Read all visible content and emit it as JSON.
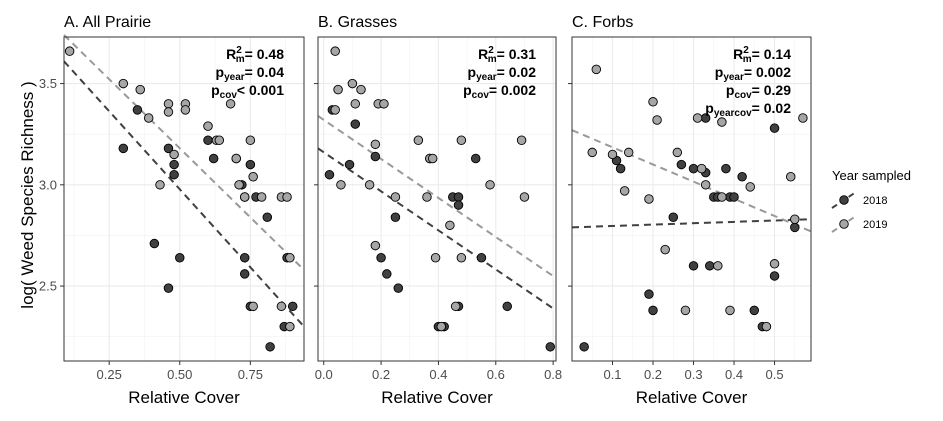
{
  "y_axis_label": "log( Weed Species Richness )",
  "legend": {
    "title": "Year sampled",
    "entries": [
      {
        "label": "2018",
        "point_color": "#404040",
        "line_color": "#404040"
      },
      {
        "label": "2019",
        "point_color": "#a6a6a6",
        "line_color": "#999999"
      }
    ]
  },
  "chart_data": [
    {
      "type": "scatter",
      "title": "A. All Prairie",
      "xlabel": "Relative Cover",
      "ylabel": "log( Weed Species Richness )",
      "xlim": [
        0.09,
        0.94
      ],
      "ylim": [
        2.13,
        3.73
      ],
      "x_ticks": [
        0.25,
        0.5,
        0.75
      ],
      "x_tick_labels": [
        "0.25",
        "0.50",
        "0.75"
      ],
      "y_ticks": [
        2.5,
        3.0,
        3.5
      ],
      "y_tick_labels": [
        "2.5",
        "3.0",
        "3.5"
      ],
      "grid": true,
      "stats": [
        {
          "base": "R",
          "sup": "2",
          "sub": "m",
          "value": "= 0.48"
        },
        {
          "base": "p",
          "sup": "",
          "sub": "year",
          "value": "= 0.04"
        },
        {
          "base": "p",
          "sup": "",
          "sub": "cov",
          "value": "< 0.001"
        }
      ],
      "trend_lines": [
        {
          "series": "2018",
          "x": [
            0.09,
            0.94
          ],
          "y": [
            3.61,
            2.3
          ]
        },
        {
          "series": "2019",
          "x": [
            0.09,
            0.94
          ],
          "y": [
            3.74,
            2.58
          ]
        }
      ],
      "series": [
        {
          "name": "2018",
          "points": [
            {
              "x": 0.3,
              "y": 3.18
            },
            {
              "x": 0.35,
              "y": 3.37
            },
            {
              "x": 0.46,
              "y": 3.18
            },
            {
              "x": 0.48,
              "y": 3.05
            },
            {
              "x": 0.48,
              "y": 3.1
            },
            {
              "x": 0.5,
              "y": 2.64
            },
            {
              "x": 0.46,
              "y": 2.49
            },
            {
              "x": 0.41,
              "y": 2.71
            },
            {
              "x": 0.6,
              "y": 3.22
            },
            {
              "x": 0.62,
              "y": 3.13
            },
            {
              "x": 0.7,
              "y": 3.13
            },
            {
              "x": 0.72,
              "y": 3.0
            },
            {
              "x": 0.73,
              "y": 2.94
            },
            {
              "x": 0.73,
              "y": 2.64
            },
            {
              "x": 0.73,
              "y": 2.56
            },
            {
              "x": 0.75,
              "y": 3.1
            },
            {
              "x": 0.75,
              "y": 2.4
            },
            {
              "x": 0.77,
              "y": 2.94
            },
            {
              "x": 0.81,
              "y": 2.84
            },
            {
              "x": 0.82,
              "y": 2.2
            },
            {
              "x": 0.87,
              "y": 2.3
            },
            {
              "x": 0.88,
              "y": 2.64
            },
            {
              "x": 0.9,
              "y": 2.4
            }
          ]
        },
        {
          "name": "2019",
          "points": [
            {
              "x": 0.11,
              "y": 3.66
            },
            {
              "x": 0.3,
              "y": 3.5
            },
            {
              "x": 0.36,
              "y": 3.47
            },
            {
              "x": 0.39,
              "y": 3.33
            },
            {
              "x": 0.43,
              "y": 3.0
            },
            {
              "x": 0.46,
              "y": 3.4
            },
            {
              "x": 0.46,
              "y": 3.36
            },
            {
              "x": 0.48,
              "y": 3.15
            },
            {
              "x": 0.52,
              "y": 3.4
            },
            {
              "x": 0.52,
              "y": 3.37
            },
            {
              "x": 0.6,
              "y": 3.29
            },
            {
              "x": 0.63,
              "y": 3.22
            },
            {
              "x": 0.68,
              "y": 3.4
            },
            {
              "x": 0.7,
              "y": 3.13
            },
            {
              "x": 0.71,
              "y": 3.0
            },
            {
              "x": 0.75,
              "y": 3.22
            },
            {
              "x": 0.76,
              "y": 3.04
            },
            {
              "x": 0.76,
              "y": 2.4
            },
            {
              "x": 0.79,
              "y": 2.94
            },
            {
              "x": 0.86,
              "y": 2.4
            },
            {
              "x": 0.86,
              "y": 2.94
            },
            {
              "x": 0.88,
              "y": 2.94
            },
            {
              "x": 0.89,
              "y": 2.64
            },
            {
              "x": 0.89,
              "y": 2.3
            },
            {
              "x": 0.73,
              "y": 2.94
            },
            {
              "x": 0.64,
              "y": 3.22
            }
          ]
        }
      ]
    },
    {
      "type": "scatter",
      "title": "B. Grasses",
      "xlabel": "Relative Cover",
      "xlim": [
        -0.02,
        0.81
      ],
      "ylim": [
        2.13,
        3.73
      ],
      "x_ticks": [
        0.0,
        0.2,
        0.4,
        0.6,
        0.8
      ],
      "x_tick_labels": [
        "0.0",
        "0.2",
        "0.4",
        "0.6",
        "0.8"
      ],
      "y_ticks": [
        2.5,
        3.0,
        3.5
      ],
      "y_tick_labels": [
        "",
        "",
        ""
      ],
      "grid": true,
      "stats": [
        {
          "base": "R",
          "sup": "2",
          "sub": "m",
          "value": "= 0.31"
        },
        {
          "base": "p",
          "sup": "",
          "sub": "year",
          "value": "= 0.02"
        },
        {
          "base": "p",
          "sup": "",
          "sub": "cov",
          "value": "= 0.002"
        }
      ],
      "trend_lines": [
        {
          "series": "2018",
          "x": [
            -0.02,
            0.81
          ],
          "y": [
            3.18,
            2.38
          ]
        },
        {
          "series": "2019",
          "x": [
            -0.02,
            0.81
          ],
          "y": [
            3.34,
            2.54
          ]
        }
      ],
      "series": [
        {
          "name": "2018",
          "points": [
            {
              "x": 0.02,
              "y": 3.05
            },
            {
              "x": 0.03,
              "y": 3.37
            },
            {
              "x": 0.09,
              "y": 3.1
            },
            {
              "x": 0.11,
              "y": 3.3
            },
            {
              "x": 0.18,
              "y": 3.14
            },
            {
              "x": 0.2,
              "y": 2.64
            },
            {
              "x": 0.22,
              "y": 2.56
            },
            {
              "x": 0.25,
              "y": 2.84
            },
            {
              "x": 0.26,
              "y": 2.49
            },
            {
              "x": 0.37,
              "y": 3.13
            },
            {
              "x": 0.4,
              "y": 2.3
            },
            {
              "x": 0.42,
              "y": 2.3
            },
            {
              "x": 0.45,
              "y": 2.94
            },
            {
              "x": 0.47,
              "y": 2.94
            },
            {
              "x": 0.47,
              "y": 2.9
            },
            {
              "x": 0.47,
              "y": 2.4
            },
            {
              "x": 0.53,
              "y": 3.13
            },
            {
              "x": 0.55,
              "y": 2.64
            },
            {
              "x": 0.64,
              "y": 2.4
            },
            {
              "x": 0.79,
              "y": 2.2
            }
          ]
        },
        {
          "name": "2019",
          "points": [
            {
              "x": 0.04,
              "y": 3.66
            },
            {
              "x": 0.05,
              "y": 3.47
            },
            {
              "x": 0.04,
              "y": 3.37
            },
            {
              "x": 0.06,
              "y": 3.0
            },
            {
              "x": 0.1,
              "y": 3.5
            },
            {
              "x": 0.11,
              "y": 3.4
            },
            {
              "x": 0.13,
              "y": 3.47
            },
            {
              "x": 0.18,
              "y": 3.2
            },
            {
              "x": 0.19,
              "y": 3.4
            },
            {
              "x": 0.21,
              "y": 3.4
            },
            {
              "x": 0.16,
              "y": 3.0
            },
            {
              "x": 0.18,
              "y": 2.7
            },
            {
              "x": 0.25,
              "y": 2.94
            },
            {
              "x": 0.33,
              "y": 3.22
            },
            {
              "x": 0.37,
              "y": 3.13
            },
            {
              "x": 0.38,
              "y": 3.13
            },
            {
              "x": 0.36,
              "y": 2.94
            },
            {
              "x": 0.39,
              "y": 2.64
            },
            {
              "x": 0.41,
              "y": 2.3
            },
            {
              "x": 0.44,
              "y": 2.8
            },
            {
              "x": 0.46,
              "y": 2.4
            },
            {
              "x": 0.48,
              "y": 3.22
            },
            {
              "x": 0.48,
              "y": 2.64
            },
            {
              "x": 0.58,
              "y": 3.0
            },
            {
              "x": 0.69,
              "y": 3.22
            },
            {
              "x": 0.7,
              "y": 2.94
            }
          ]
        }
      ]
    },
    {
      "type": "scatter",
      "title": "C. Forbs",
      "xlabel": "Relative Cover",
      "xlim": [
        0.0,
        0.59
      ],
      "ylim": [
        2.13,
        3.73
      ],
      "x_ticks": [
        0.1,
        0.2,
        0.3,
        0.4,
        0.5
      ],
      "x_tick_labels": [
        "0.1",
        "0.2",
        "0.3",
        "0.4",
        "0.5"
      ],
      "y_ticks": [
        2.5,
        3.0,
        3.5
      ],
      "y_tick_labels": [
        "",
        "",
        ""
      ],
      "grid": true,
      "stats": [
        {
          "base": "R",
          "sup": "2",
          "sub": "m",
          "value": "= 0.14"
        },
        {
          "base": "p",
          "sup": "",
          "sub": "year",
          "value": "= 0.002"
        },
        {
          "base": "p",
          "sup": "",
          "sub": "cov",
          "value": "= 0.29"
        },
        {
          "base": "p",
          "sup": "",
          "sub": "yearcov",
          "value": "= 0.02"
        }
      ],
      "trend_lines": [
        {
          "series": "2018",
          "x": [
            0.0,
            0.59
          ],
          "y": [
            2.79,
            2.83
          ]
        },
        {
          "series": "2019",
          "x": [
            0.0,
            0.59
          ],
          "y": [
            3.27,
            2.77
          ]
        }
      ],
      "series": [
        {
          "name": "2018",
          "points": [
            {
              "x": 0.03,
              "y": 2.2
            },
            {
              "x": 0.11,
              "y": 3.12
            },
            {
              "x": 0.12,
              "y": 3.08
            },
            {
              "x": 0.19,
              "y": 2.46
            },
            {
              "x": 0.2,
              "y": 2.38
            },
            {
              "x": 0.25,
              "y": 2.84
            },
            {
              "x": 0.27,
              "y": 3.1
            },
            {
              "x": 0.3,
              "y": 3.08
            },
            {
              "x": 0.3,
              "y": 2.6
            },
            {
              "x": 0.33,
              "y": 3.33
            },
            {
              "x": 0.33,
              "y": 3.06
            },
            {
              "x": 0.34,
              "y": 2.6
            },
            {
              "x": 0.35,
              "y": 2.94
            },
            {
              "x": 0.36,
              "y": 2.94
            },
            {
              "x": 0.38,
              "y": 3.08
            },
            {
              "x": 0.39,
              "y": 2.94
            },
            {
              "x": 0.4,
              "y": 2.94
            },
            {
              "x": 0.42,
              "y": 3.04
            },
            {
              "x": 0.45,
              "y": 2.38
            },
            {
              "x": 0.47,
              "y": 2.3
            },
            {
              "x": 0.5,
              "y": 3.28
            },
            {
              "x": 0.5,
              "y": 2.55
            },
            {
              "x": 0.55,
              "y": 2.79
            }
          ]
        },
        {
          "name": "2019",
          "points": [
            {
              "x": 0.06,
              "y": 3.57
            },
            {
              "x": 0.05,
              "y": 3.16
            },
            {
              "x": 0.1,
              "y": 3.15
            },
            {
              "x": 0.14,
              "y": 3.16
            },
            {
              "x": 0.13,
              "y": 2.97
            },
            {
              "x": 0.2,
              "y": 3.41
            },
            {
              "x": 0.21,
              "y": 3.32
            },
            {
              "x": 0.19,
              "y": 2.93
            },
            {
              "x": 0.23,
              "y": 2.68
            },
            {
              "x": 0.26,
              "y": 3.16
            },
            {
              "x": 0.28,
              "y": 2.38
            },
            {
              "x": 0.31,
              "y": 3.33
            },
            {
              "x": 0.32,
              "y": 3.08
            },
            {
              "x": 0.33,
              "y": 3.0
            },
            {
              "x": 0.37,
              "y": 3.31
            },
            {
              "x": 0.36,
              "y": 2.6
            },
            {
              "x": 0.37,
              "y": 2.94
            },
            {
              "x": 0.39,
              "y": 2.38
            },
            {
              "x": 0.44,
              "y": 2.99
            },
            {
              "x": 0.48,
              "y": 2.3
            },
            {
              "x": 0.5,
              "y": 2.61
            },
            {
              "x": 0.54,
              "y": 3.04
            },
            {
              "x": 0.57,
              "y": 3.33
            },
            {
              "x": 0.55,
              "y": 2.83
            }
          ]
        }
      ]
    }
  ]
}
